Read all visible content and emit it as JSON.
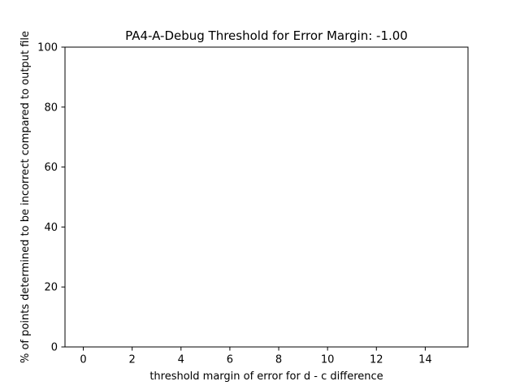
{
  "chart_data": {
    "type": "line",
    "title": "PA4-A-Debug Threshold for Error Margin: -1.00",
    "xlabel": "threshold margin of error for d - c difference",
    "ylabel": "% of points determined to be incorrect compared to output file",
    "xlim": [
      -0.75,
      15.75
    ],
    "ylim": [
      0,
      100
    ],
    "xticks": [
      0,
      2,
      4,
      6,
      8,
      10,
      12,
      14
    ],
    "yticks": [
      0,
      20,
      40,
      60,
      80,
      100
    ],
    "grid": false,
    "series": [
      {
        "x": [],
        "y": []
      }
    ],
    "colors": {
      "axis": "#000000",
      "background": "#ffffff",
      "series": "#1f77b4"
    }
  }
}
